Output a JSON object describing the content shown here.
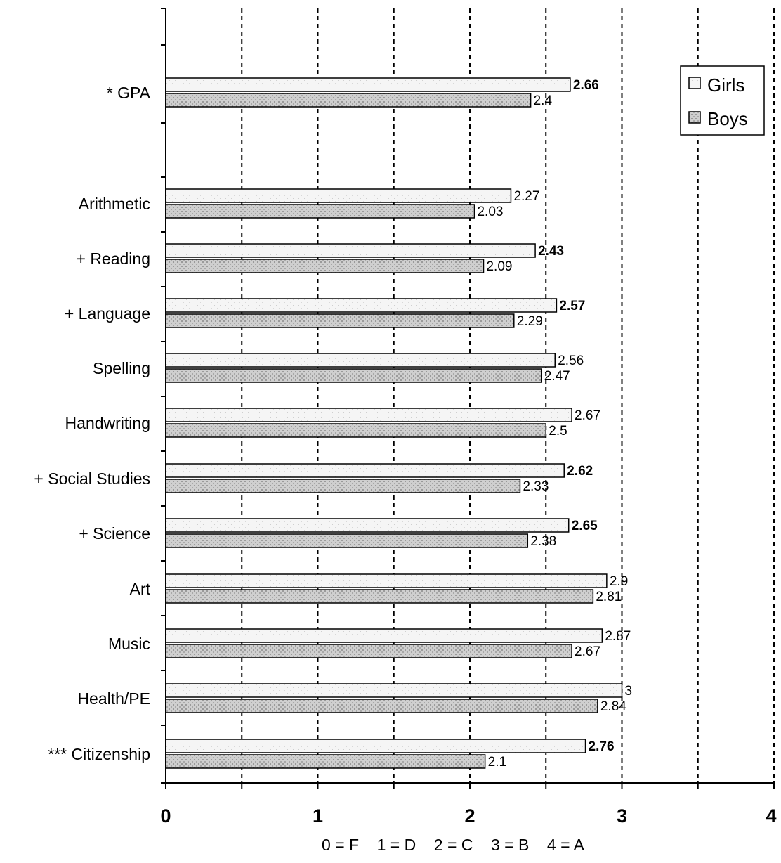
{
  "chart_data": {
    "type": "bar",
    "orientation": "horizontal",
    "categories": [
      "* GPA",
      "Arithmetic",
      "+ Reading",
      "+ Language",
      "Spelling",
      "Handwriting",
      "+ Social Studies",
      "+ Science",
      "Art",
      "Music",
      "Health/PE",
      "*** Citizenship"
    ],
    "series": [
      {
        "name": "Girls",
        "values": [
          2.66,
          2.27,
          2.43,
          2.57,
          2.56,
          2.67,
          2.62,
          2.65,
          2.9,
          2.87,
          3,
          2.76
        ]
      },
      {
        "name": "Boys",
        "values": [
          2.4,
          2.03,
          2.09,
          2.29,
          2.47,
          2.5,
          2.33,
          2.38,
          2.81,
          2.67,
          2.84,
          2.1
        ]
      }
    ],
    "value_labels": {
      "Girls": [
        "2.66",
        "2.27",
        "2.43",
        "2.57",
        "2.56",
        "2.67",
        "2.62",
        "2.65",
        "2.9",
        "2.87",
        "3",
        "2.76"
      ],
      "Boys": [
        "2.4",
        "2.03",
        "2.09",
        "2.29",
        "2.47",
        "2.5",
        "2.33",
        "2.38",
        "2.81",
        "2.67",
        "2.84",
        "2.1"
      ]
    },
    "bold_girls_labels": [
      true,
      false,
      true,
      true,
      false,
      false,
      true,
      true,
      false,
      false,
      false,
      true
    ],
    "xlim": [
      0,
      4
    ],
    "x_ticks": [
      "0",
      "1",
      "2",
      "3",
      "4"
    ],
    "gridlines": "dashed-vertical-at-half-steps",
    "legend_placement": "top-right",
    "xlabel": "0 = F    1 = D    2 = C    3 = B    4 = A",
    "ylabel": "",
    "title": "",
    "colors": {
      "girls_fill": "#f4f4f4",
      "boys_fill": "#c9c9c9",
      "stroke": "#000000"
    }
  }
}
